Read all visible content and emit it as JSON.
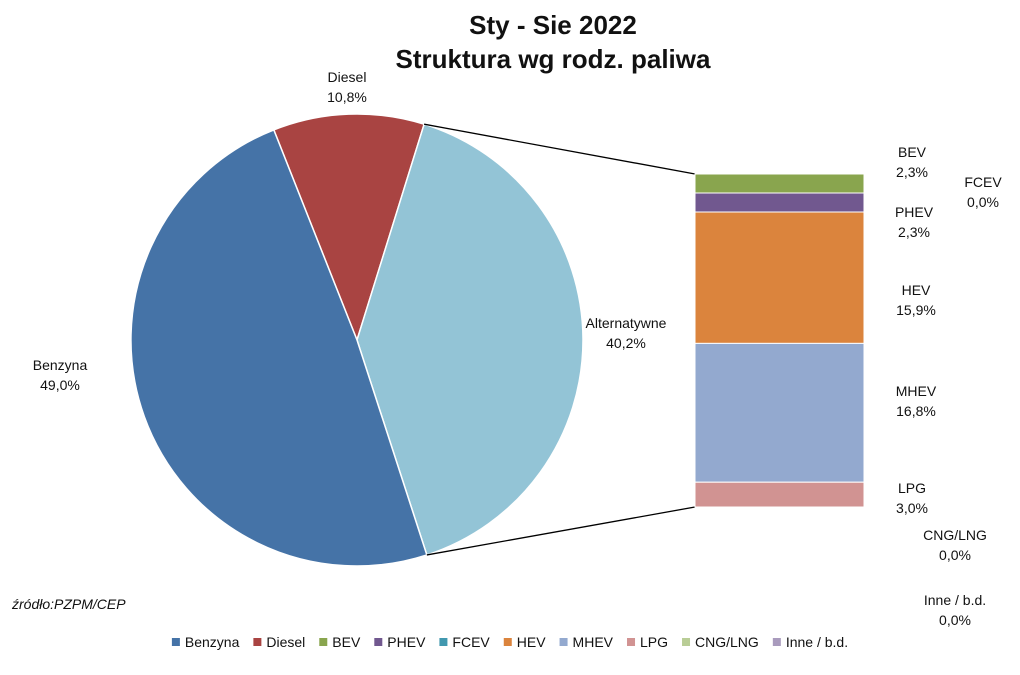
{
  "chart_data": {
    "type": "bar-of-pie",
    "title_lines": [
      "Sty - Sie 2022",
      "Struktura wg rodz. paliwa"
    ],
    "pie": {
      "slices": [
        {
          "name": "Diesel",
          "value": 10.8,
          "label": "10,8%",
          "color": "#A94442"
        },
        {
          "name": "Alternatywne",
          "value": 40.2,
          "label": "40,2%",
          "color": "#93C4D6"
        },
        {
          "name": "Benzyna",
          "value": 49.0,
          "label": "49,0%",
          "color": "#4573A7"
        }
      ]
    },
    "bar": {
      "segments": [
        {
          "name": "BEV",
          "value": 2.3,
          "label": "2,3%",
          "color": "#89A54E"
        },
        {
          "name": "PHEV",
          "value": 2.3,
          "label": "2,3%",
          "color": "#71588F"
        },
        {
          "name": "FCEV",
          "value": 0.0,
          "label": "0,0%",
          "color": "#4198AF"
        },
        {
          "name": "HEV",
          "value": 15.9,
          "label": "15,9%",
          "color": "#DB843D"
        },
        {
          "name": "MHEV",
          "value": 16.8,
          "label": "16,8%",
          "color": "#93A9CF"
        },
        {
          "name": "LPG",
          "value": 3.0,
          "label": "3,0%",
          "color": "#D19392"
        },
        {
          "name": "CNG/LNG",
          "value": 0.0,
          "label": "0,0%",
          "color": "#B9CD96"
        },
        {
          "name": "Inne / b.d.",
          "value": 0.0,
          "label": "0,0%",
          "color": "#A99BBD"
        }
      ]
    },
    "legend": {
      "placement": "bottom",
      "entries": [
        {
          "name": "Benzyna",
          "color": "#4573A7"
        },
        {
          "name": "Diesel",
          "color": "#A94442"
        },
        {
          "name": "BEV",
          "color": "#89A54E"
        },
        {
          "name": "PHEV",
          "color": "#71588F"
        },
        {
          "name": "FCEV",
          "color": "#4198AF"
        },
        {
          "name": "HEV",
          "color": "#DB843D"
        },
        {
          "name": "MHEV",
          "color": "#93A9CF"
        },
        {
          "name": "LPG",
          "color": "#D19392"
        },
        {
          "name": "CNG/LNG",
          "color": "#B9CD96"
        },
        {
          "name": "Inne / b.d.",
          "color": "#A99BBD"
        }
      ]
    },
    "source": "źródło:PZPM/CEP"
  }
}
